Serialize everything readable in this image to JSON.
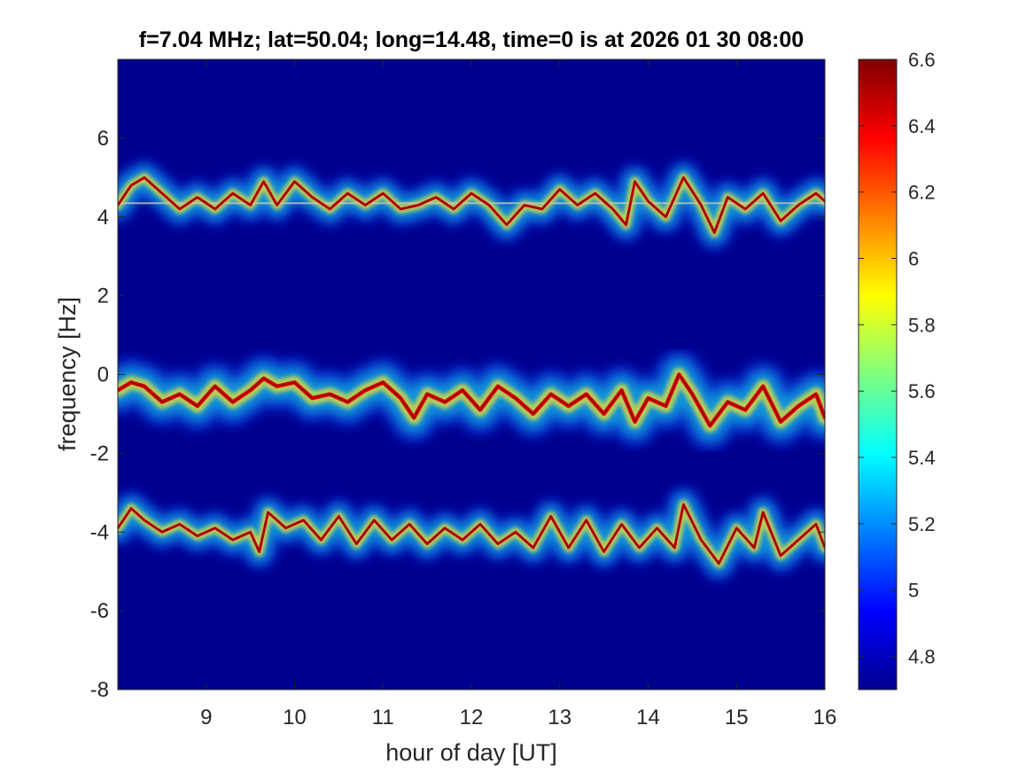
{
  "chart_data": {
    "type": "heatmap",
    "title": "f=7.04 MHz;  lat=50.04; long=14.48, time=0 is at 2026 01 30 08:00",
    "xlabel": "hour of day [UT]",
    "ylabel": "frequency [Hz]",
    "xlim": [
      8,
      16
    ],
    "ylim": [
      -8,
      8
    ],
    "xticks": [
      9,
      10,
      11,
      12,
      13,
      14,
      15,
      16
    ],
    "yticks": [
      -8,
      -6,
      -4,
      -2,
      0,
      2,
      4,
      6
    ],
    "colorbar": {
      "range": [
        4.7,
        6.6
      ],
      "ticks": [
        4.8,
        5,
        5.2,
        5.4,
        5.6,
        5.8,
        6,
        6.2,
        6.4,
        6.6
      ],
      "colormap": "jet",
      "placement": "right"
    },
    "background_value": 4.7,
    "bands": [
      {
        "center_hz": 4.35,
        "track": [
          [
            8.0,
            4.3
          ],
          [
            8.15,
            4.8
          ],
          [
            8.3,
            5.0
          ],
          [
            8.5,
            4.6
          ],
          [
            8.7,
            4.2
          ],
          [
            8.9,
            4.5
          ],
          [
            9.1,
            4.2
          ],
          [
            9.3,
            4.6
          ],
          [
            9.5,
            4.3
          ],
          [
            9.65,
            4.9
          ],
          [
            9.8,
            4.3
          ],
          [
            10.0,
            4.9
          ],
          [
            10.2,
            4.5
          ],
          [
            10.4,
            4.2
          ],
          [
            10.6,
            4.6
          ],
          [
            10.8,
            4.3
          ],
          [
            11.0,
            4.6
          ],
          [
            11.2,
            4.2
          ],
          [
            11.4,
            4.3
          ],
          [
            11.6,
            4.5
          ],
          [
            11.8,
            4.2
          ],
          [
            12.0,
            4.6
          ],
          [
            12.2,
            4.3
          ],
          [
            12.4,
            3.8
          ],
          [
            12.6,
            4.3
          ],
          [
            12.8,
            4.2
          ],
          [
            13.0,
            4.7
          ],
          [
            13.2,
            4.3
          ],
          [
            13.4,
            4.6
          ],
          [
            13.6,
            4.2
          ],
          [
            13.75,
            3.8
          ],
          [
            13.85,
            4.9
          ],
          [
            14.0,
            4.4
          ],
          [
            14.2,
            4.0
          ],
          [
            14.4,
            5.0
          ],
          [
            14.6,
            4.3
          ],
          [
            14.75,
            3.6
          ],
          [
            14.9,
            4.5
          ],
          [
            15.1,
            4.2
          ],
          [
            15.3,
            4.6
          ],
          [
            15.5,
            3.9
          ],
          [
            15.7,
            4.3
          ],
          [
            15.9,
            4.6
          ],
          [
            16.0,
            4.4
          ]
        ],
        "reference_line_hz": 4.35,
        "intensity": "medium"
      },
      {
        "center_hz": -0.5,
        "track": [
          [
            8.0,
            -0.4
          ],
          [
            8.15,
            -0.2
          ],
          [
            8.3,
            -0.3
          ],
          [
            8.5,
            -0.7
          ],
          [
            8.7,
            -0.5
          ],
          [
            8.9,
            -0.8
          ],
          [
            9.1,
            -0.3
          ],
          [
            9.3,
            -0.7
          ],
          [
            9.5,
            -0.4
          ],
          [
            9.65,
            -0.1
          ],
          [
            9.8,
            -0.3
          ],
          [
            10.0,
            -0.2
          ],
          [
            10.2,
            -0.6
          ],
          [
            10.4,
            -0.5
          ],
          [
            10.6,
            -0.7
          ],
          [
            10.8,
            -0.4
          ],
          [
            11.0,
            -0.2
          ],
          [
            11.2,
            -0.6
          ],
          [
            11.35,
            -1.1
          ],
          [
            11.5,
            -0.5
          ],
          [
            11.7,
            -0.7
          ],
          [
            11.9,
            -0.4
          ],
          [
            12.1,
            -0.9
          ],
          [
            12.3,
            -0.3
          ],
          [
            12.5,
            -0.6
          ],
          [
            12.7,
            -1.0
          ],
          [
            12.9,
            -0.5
          ],
          [
            13.1,
            -0.8
          ],
          [
            13.3,
            -0.5
          ],
          [
            13.5,
            -1.0
          ],
          [
            13.7,
            -0.4
          ],
          [
            13.85,
            -1.2
          ],
          [
            14.0,
            -0.6
          ],
          [
            14.2,
            -0.8
          ],
          [
            14.35,
            0.0
          ],
          [
            14.5,
            -0.5
          ],
          [
            14.7,
            -1.3
          ],
          [
            14.9,
            -0.7
          ],
          [
            15.1,
            -0.9
          ],
          [
            15.3,
            -0.3
          ],
          [
            15.5,
            -1.2
          ],
          [
            15.7,
            -0.8
          ],
          [
            15.9,
            -0.5
          ],
          [
            16.0,
            -1.1
          ]
        ],
        "intensity": "high"
      },
      {
        "center_hz": -4.0,
        "track": [
          [
            8.0,
            -3.9
          ],
          [
            8.15,
            -3.4
          ],
          [
            8.3,
            -3.7
          ],
          [
            8.5,
            -4.0
          ],
          [
            8.7,
            -3.8
          ],
          [
            8.9,
            -4.1
          ],
          [
            9.1,
            -3.9
          ],
          [
            9.3,
            -4.2
          ],
          [
            9.5,
            -4.0
          ],
          [
            9.6,
            -4.5
          ],
          [
            9.7,
            -3.5
          ],
          [
            9.9,
            -3.9
          ],
          [
            10.1,
            -3.7
          ],
          [
            10.3,
            -4.2
          ],
          [
            10.5,
            -3.6
          ],
          [
            10.7,
            -4.3
          ],
          [
            10.9,
            -3.7
          ],
          [
            11.1,
            -4.2
          ],
          [
            11.3,
            -3.8
          ],
          [
            11.5,
            -4.3
          ],
          [
            11.7,
            -3.9
          ],
          [
            11.9,
            -4.2
          ],
          [
            12.1,
            -3.8
          ],
          [
            12.3,
            -4.3
          ],
          [
            12.5,
            -4.0
          ],
          [
            12.7,
            -4.4
          ],
          [
            12.9,
            -3.6
          ],
          [
            13.1,
            -4.4
          ],
          [
            13.3,
            -3.7
          ],
          [
            13.5,
            -4.5
          ],
          [
            13.7,
            -3.8
          ],
          [
            13.9,
            -4.4
          ],
          [
            14.1,
            -3.9
          ],
          [
            14.3,
            -4.4
          ],
          [
            14.4,
            -3.3
          ],
          [
            14.6,
            -4.2
          ],
          [
            14.8,
            -4.8
          ],
          [
            15.0,
            -3.9
          ],
          [
            15.2,
            -4.4
          ],
          [
            15.3,
            -3.5
          ],
          [
            15.5,
            -4.6
          ],
          [
            15.7,
            -4.2
          ],
          [
            15.9,
            -3.8
          ],
          [
            16.0,
            -4.4
          ]
        ],
        "intensity": "medium"
      }
    ]
  }
}
